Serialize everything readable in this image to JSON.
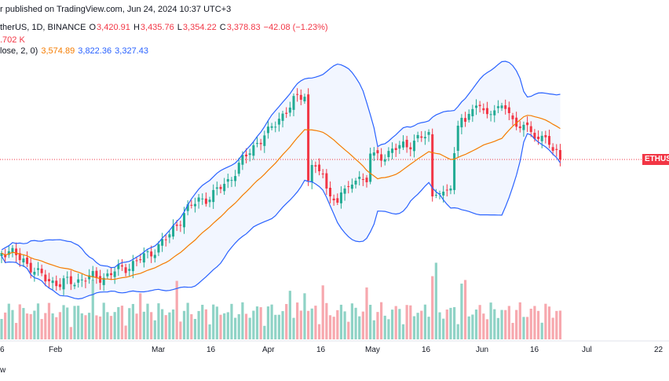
{
  "header": {
    "published": "r published on TradingView.com, Jun 24, 2024 10:37 UTC+3",
    "symbol": "therUS, 1D, BINANCE",
    "o_label": "O",
    "o_val": "3,420.91",
    "h_label": "H",
    "h_val": "3,435.76",
    "l_label": "L",
    "l_val": "3,354.22",
    "c_label": "C",
    "c_val": "3,378.83",
    "change": "−42.08 (−1.23%)",
    "volume": ".702 K",
    "bb_label": "lose, 2, 0)",
    "bb_basis": "3,574.89",
    "bb_upper": "3,822.36",
    "bb_lower": "3,327.43"
  },
  "price_tag": "ETHUS",
  "x_axis": {
    "labels": [
      "6",
      "Feb",
      "Mar",
      "16",
      "Apr",
      "16",
      "May",
      "16",
      "Jun",
      "16",
      "Jul",
      "22"
    ]
  },
  "footer": "w",
  "colors": {
    "up": "#22ab94",
    "down": "#f23645",
    "vol_up": "#8fd3c6",
    "vol_down": "#f7a8ae",
    "basis": "#f57c00",
    "band": "#2962ff",
    "band_fill": "#2962ff"
  },
  "chart_data": {
    "type": "candlestick",
    "bollinger": {
      "length": "lose",
      "mult": 2,
      "offset": 0
    }
  }
}
